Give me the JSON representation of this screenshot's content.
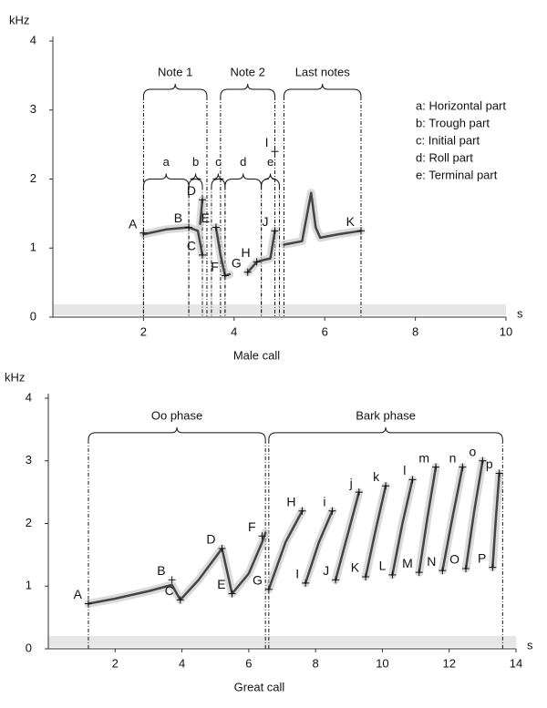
{
  "chart_data": [
    {
      "type": "spectrogram",
      "y_unit": "kHz",
      "x_unit": "s",
      "xlabel": "Male call",
      "xlim": [
        0,
        10
      ],
      "ylim": [
        0,
        4
      ],
      "xticks": [
        2,
        4,
        6,
        8,
        10
      ],
      "yticks": [
        0,
        1,
        2,
        3,
        4
      ],
      "brackets": [
        {
          "label": "Note 1",
          "x": [
            2,
            3.4
          ],
          "y": 3.3
        },
        {
          "label": "Note 2",
          "x": [
            3.7,
            4.9
          ],
          "y": 3.3
        },
        {
          "label": "Last notes",
          "x": [
            5.1,
            6.8
          ],
          "y": 3.3
        },
        {
          "label": "a",
          "x": [
            2,
            3
          ],
          "y": 2
        },
        {
          "label": "b",
          "x": [
            3,
            3.3
          ],
          "y": 2
        },
        {
          "label": "c",
          "x": [
            3.5,
            3.8
          ],
          "y": 2
        },
        {
          "label": "d",
          "x": [
            3.8,
            4.6
          ],
          "y": 2
        },
        {
          "label": "e",
          "x": [
            4.6,
            5
          ],
          "y": 2
        }
      ],
      "legend": [
        "a: Horizontal part",
        "b: Trough part",
        "c: Initial part",
        "d: Roll part",
        "e: Terminal part"
      ],
      "traces": [
        {
          "x": [
            2,
            2.5,
            3,
            3.2,
            3.3
          ],
          "y": [
            1.2,
            1.27,
            1.3,
            1.25,
            0.9
          ]
        },
        {
          "x": [
            3.25,
            3.3
          ],
          "y": [
            1.35,
            1.7
          ]
        },
        {
          "x": [
            3.6,
            3.7,
            3.8,
            3.9
          ],
          "y": [
            1.3,
            0.9,
            0.6,
            0.62
          ]
        },
        {
          "x": [
            4.3,
            4.5,
            4.6,
            4.8,
            4.9
          ],
          "y": [
            0.65,
            0.8,
            0.82,
            0.85,
            1.25
          ]
        },
        {
          "x": [
            5.1,
            5.5,
            5.7,
            5.8,
            5.9,
            6.3,
            6.8
          ],
          "y": [
            1.05,
            1.1,
            1.8,
            1.3,
            1.15,
            1.2,
            1.25
          ]
        }
      ],
      "points": [
        {
          "label": "A",
          "x": 2,
          "y": 1.22
        },
        {
          "label": "B",
          "x": 3,
          "y": 1.3
        },
        {
          "label": "C",
          "x": 3.3,
          "y": 0.9
        },
        {
          "label": "D",
          "x": 3.3,
          "y": 1.7
        },
        {
          "label": "E",
          "x": 3.6,
          "y": 1.3
        },
        {
          "label": "F",
          "x": 3.8,
          "y": 0.6
        },
        {
          "label": "G",
          "x": 4.3,
          "y": 0.65
        },
        {
          "label": "H",
          "x": 4.5,
          "y": 0.8
        },
        {
          "label": "I",
          "x": 4.9,
          "y": 2.4
        },
        {
          "label": "J",
          "x": 4.9,
          "y": 1.25
        },
        {
          "label": "K",
          "x": 6.8,
          "y": 1.25
        }
      ]
    },
    {
      "type": "spectrogram",
      "y_unit": "kHz",
      "x_unit": "s",
      "xlabel": "Great call",
      "xlim": [
        0,
        14
      ],
      "ylim": [
        0,
        4
      ],
      "xticks": [
        2,
        4,
        6,
        8,
        10,
        12,
        14
      ],
      "yticks": [
        0,
        1,
        2,
        3,
        4
      ],
      "brackets": [
        {
          "label": "Oo  phase",
          "x": [
            1.2,
            6.5
          ],
          "y": 3.45
        },
        {
          "label": "Bark phase",
          "x": [
            6.6,
            13.6
          ],
          "y": 3.45
        }
      ],
      "traces": [
        {
          "x": [
            1.2,
            2,
            3,
            3.7,
            3.95,
            4.5,
            5.2,
            5.5,
            6,
            6.4,
            6.5
          ],
          "y": [
            0.72,
            0.8,
            0.92,
            1.02,
            0.78,
            1.1,
            1.6,
            0.88,
            1.2,
            1.7,
            1.85
          ]
        },
        {
          "x": [
            6.6,
            7.1,
            7.6
          ],
          "y": [
            0.95,
            1.7,
            2.2
          ]
        },
        {
          "x": [
            7.7,
            8.1,
            8.5
          ],
          "y": [
            1.05,
            1.7,
            2.2
          ]
        },
        {
          "x": [
            8.6,
            9,
            9.3
          ],
          "y": [
            1.1,
            1.9,
            2.5
          ]
        },
        {
          "x": [
            9.5,
            9.8,
            10.1
          ],
          "y": [
            1.15,
            1.9,
            2.6
          ]
        },
        {
          "x": [
            10.3,
            10.6,
            10.9
          ],
          "y": [
            1.18,
            2,
            2.7
          ]
        },
        {
          "x": [
            11.1,
            11.35,
            11.6
          ],
          "y": [
            1.22,
            2.1,
            2.9
          ]
        },
        {
          "x": [
            11.8,
            12.1,
            12.4
          ],
          "y": [
            1.25,
            2.1,
            2.9
          ]
        },
        {
          "x": [
            12.5,
            12.75,
            13
          ],
          "y": [
            1.28,
            2.2,
            3.0
          ]
        },
        {
          "x": [
            13.3,
            13.4,
            13.5
          ],
          "y": [
            1.3,
            2.1,
            2.8
          ]
        }
      ],
      "points": [
        {
          "label": "A",
          "x": 1.2,
          "y": 0.72
        },
        {
          "label": "B",
          "x": 3.7,
          "y": 1.1
        },
        {
          "label": "C",
          "x": 3.95,
          "y": 0.78
        },
        {
          "label": "D",
          "x": 5.2,
          "y": 1.6
        },
        {
          "label": "E",
          "x": 5.5,
          "y": 0.88
        },
        {
          "label": "F",
          "x": 6.4,
          "y": 1.8
        },
        {
          "label": "G",
          "x": 6.6,
          "y": 0.95
        },
        {
          "label": "H",
          "x": 7.6,
          "y": 2.2
        },
        {
          "label": "I",
          "x": 7.7,
          "y": 1.05
        },
        {
          "label": "i",
          "x": 8.5,
          "y": 2.2
        },
        {
          "label": "J",
          "x": 8.6,
          "y": 1.1
        },
        {
          "label": "j",
          "x": 9.3,
          "y": 2.5
        },
        {
          "label": "K",
          "x": 9.5,
          "y": 1.15
        },
        {
          "label": "k",
          "x": 10.1,
          "y": 2.6
        },
        {
          "label": "L",
          "x": 10.3,
          "y": 1.18
        },
        {
          "label": "l",
          "x": 10.9,
          "y": 2.7
        },
        {
          "label": "M",
          "x": 11.1,
          "y": 1.22
        },
        {
          "label": "m",
          "x": 11.6,
          "y": 2.9
        },
        {
          "label": "N",
          "x": 11.8,
          "y": 1.25
        },
        {
          "label": "n",
          "x": 12.4,
          "y": 2.9
        },
        {
          "label": "O",
          "x": 12.5,
          "y": 1.28
        },
        {
          "label": "o",
          "x": 13,
          "y": 3.0
        },
        {
          "label": "P",
          "x": 13.3,
          "y": 1.3
        },
        {
          "label": "p",
          "x": 13.5,
          "y": 2.8
        }
      ]
    }
  ]
}
